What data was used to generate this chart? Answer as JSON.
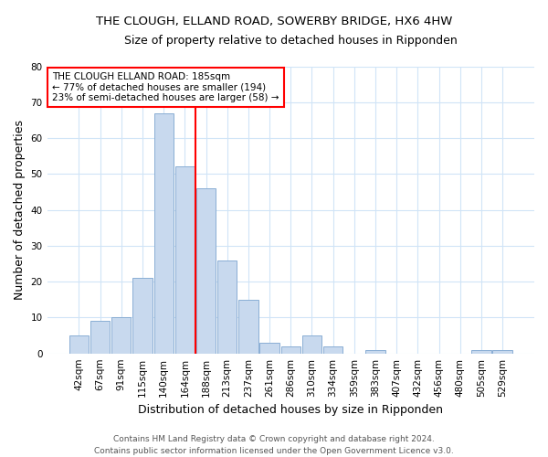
{
  "title": "THE CLOUGH, ELLAND ROAD, SOWERBY BRIDGE, HX6 4HW",
  "subtitle": "Size of property relative to detached houses in Ripponden",
  "xlabel": "Distribution of detached houses by size in Ripponden",
  "ylabel": "Number of detached properties",
  "bin_labels": [
    "42sqm",
    "67sqm",
    "91sqm",
    "115sqm",
    "140sqm",
    "164sqm",
    "188sqm",
    "213sqm",
    "237sqm",
    "261sqm",
    "286sqm",
    "310sqm",
    "334sqm",
    "359sqm",
    "383sqm",
    "407sqm",
    "432sqm",
    "456sqm",
    "480sqm",
    "505sqm",
    "529sqm"
  ],
  "bar_values": [
    5,
    9,
    10,
    21,
    67,
    52,
    46,
    26,
    15,
    3,
    2,
    5,
    2,
    0,
    1,
    0,
    0,
    0,
    0,
    1,
    1
  ],
  "bar_color": "#c8d9ee",
  "bar_edgecolor": "#8aaed4",
  "ref_line_index": 6,
  "ref_line_color": "red",
  "annotation_text": "THE CLOUGH ELLAND ROAD: 185sqm\n← 77% of detached houses are smaller (194)\n23% of semi-detached houses are larger (58) →",
  "annotation_box_facecolor": "white",
  "annotation_box_edgecolor": "red",
  "ylim": [
    0,
    80
  ],
  "yticks": [
    0,
    10,
    20,
    30,
    40,
    50,
    60,
    70,
    80
  ],
  "footer_line1": "Contains HM Land Registry data © Crown copyright and database right 2024.",
  "footer_line2": "Contains public sector information licensed under the Open Government Licence v3.0.",
  "title_fontsize": 9.5,
  "subtitle_fontsize": 9,
  "axis_label_fontsize": 9,
  "tick_fontsize": 7.5,
  "annotation_fontsize": 7.5,
  "footer_fontsize": 6.5,
  "grid_color": "#d0e4f7"
}
